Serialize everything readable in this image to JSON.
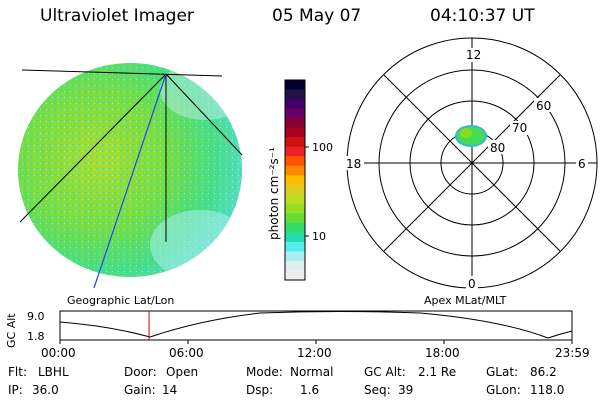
{
  "header": {
    "instrument": "Ultraviolet Imager",
    "date": "05 May 07",
    "time": "04:10:37 UT"
  },
  "colorbar": {
    "label": "photon cm⁻²s⁻¹",
    "ticks": [
      "100",
      "10"
    ],
    "colors": [
      "#000033",
      "#221144",
      "#440066",
      "#660066",
      "#880033",
      "#aa0022",
      "#cc1111",
      "#ee2222",
      "#ff5500",
      "#ff8800",
      "#ffbb00",
      "#ddcc22",
      "#bbdd22",
      "#99dd22",
      "#66dd33",
      "#33dd66",
      "#22ddaa",
      "#55eeee",
      "#aaeeee",
      "#ddeeee",
      "#eeeeee"
    ]
  },
  "left_panel": {
    "caption": "Geographic Lat/Lon"
  },
  "right_panel": {
    "caption": "Apex MLat/MLT",
    "mlt_labels": [
      "12",
      "18",
      "6",
      "0"
    ],
    "lat_labels": [
      "60",
      "70",
      "80"
    ]
  },
  "timeline": {
    "ylabel": "GC Alt",
    "ymax": "9.0",
    "ymin": "1.8",
    "ticks": [
      "00:00",
      "06:00",
      "12:00",
      "18:00",
      "23:59"
    ],
    "marker_fraction": 0.174
  },
  "status": {
    "filter_label": "Flt:",
    "filter_value": "LBHL",
    "door_label": "Door:",
    "door_value": "Open",
    "mode_label": "Mode:",
    "mode_value": "Normal",
    "gcalt_label": "GC Alt:",
    "gcalt_value": "2.1 Re",
    "glat_label": "GLat:",
    "glat_value": "86.2",
    "ip_label": "IP:",
    "ip_value": "36.0",
    "gain_label": "Gain:",
    "gain_value": "14",
    "dsp_label": "Dsp:",
    "dsp_value": "1.6",
    "seq_label": "Seq:",
    "seq_value": "39",
    "glon_label": "GLon:",
    "glon_value": "118.0"
  },
  "accent": {
    "limb": "#22cc66",
    "blue_line": "#2244ee",
    "marker": "#cc0000"
  }
}
